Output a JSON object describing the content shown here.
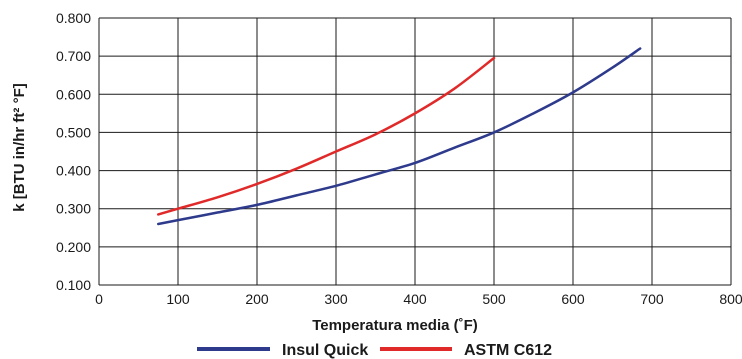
{
  "chart_data": {
    "type": "line",
    "xlabel": "Temperatura media (˚F)",
    "ylabel": "k [BTU in/hr ft² °F]",
    "xlim": [
      0,
      800
    ],
    "ylim": [
      0.1,
      0.8
    ],
    "x_ticks": [
      "0",
      "100",
      "200",
      "300",
      "400",
      "500",
      "600",
      "700",
      "800"
    ],
    "y_ticks": [
      "0.100",
      "0.200",
      "0.300",
      "0.400",
      "0.500",
      "0.600",
      "0.700",
      "0.800"
    ],
    "grid": true,
    "legend_position": "bottom",
    "series": [
      {
        "name": "Insul Quick",
        "color": "#2e3a8c",
        "x": [
          75,
          100,
          150,
          200,
          250,
          300,
          350,
          400,
          450,
          500,
          550,
          600,
          650,
          685
        ],
        "y": [
          0.26,
          0.27,
          0.29,
          0.31,
          0.335,
          0.36,
          0.39,
          0.42,
          0.46,
          0.5,
          0.55,
          0.605,
          0.67,
          0.72
        ]
      },
      {
        "name": "ASTM C612",
        "color": "#e02a2a",
        "x": [
          75,
          100,
          150,
          200,
          250,
          300,
          350,
          400,
          450,
          500
        ],
        "y": [
          0.285,
          0.3,
          0.33,
          0.365,
          0.405,
          0.45,
          0.495,
          0.55,
          0.615,
          0.695
        ]
      }
    ]
  }
}
